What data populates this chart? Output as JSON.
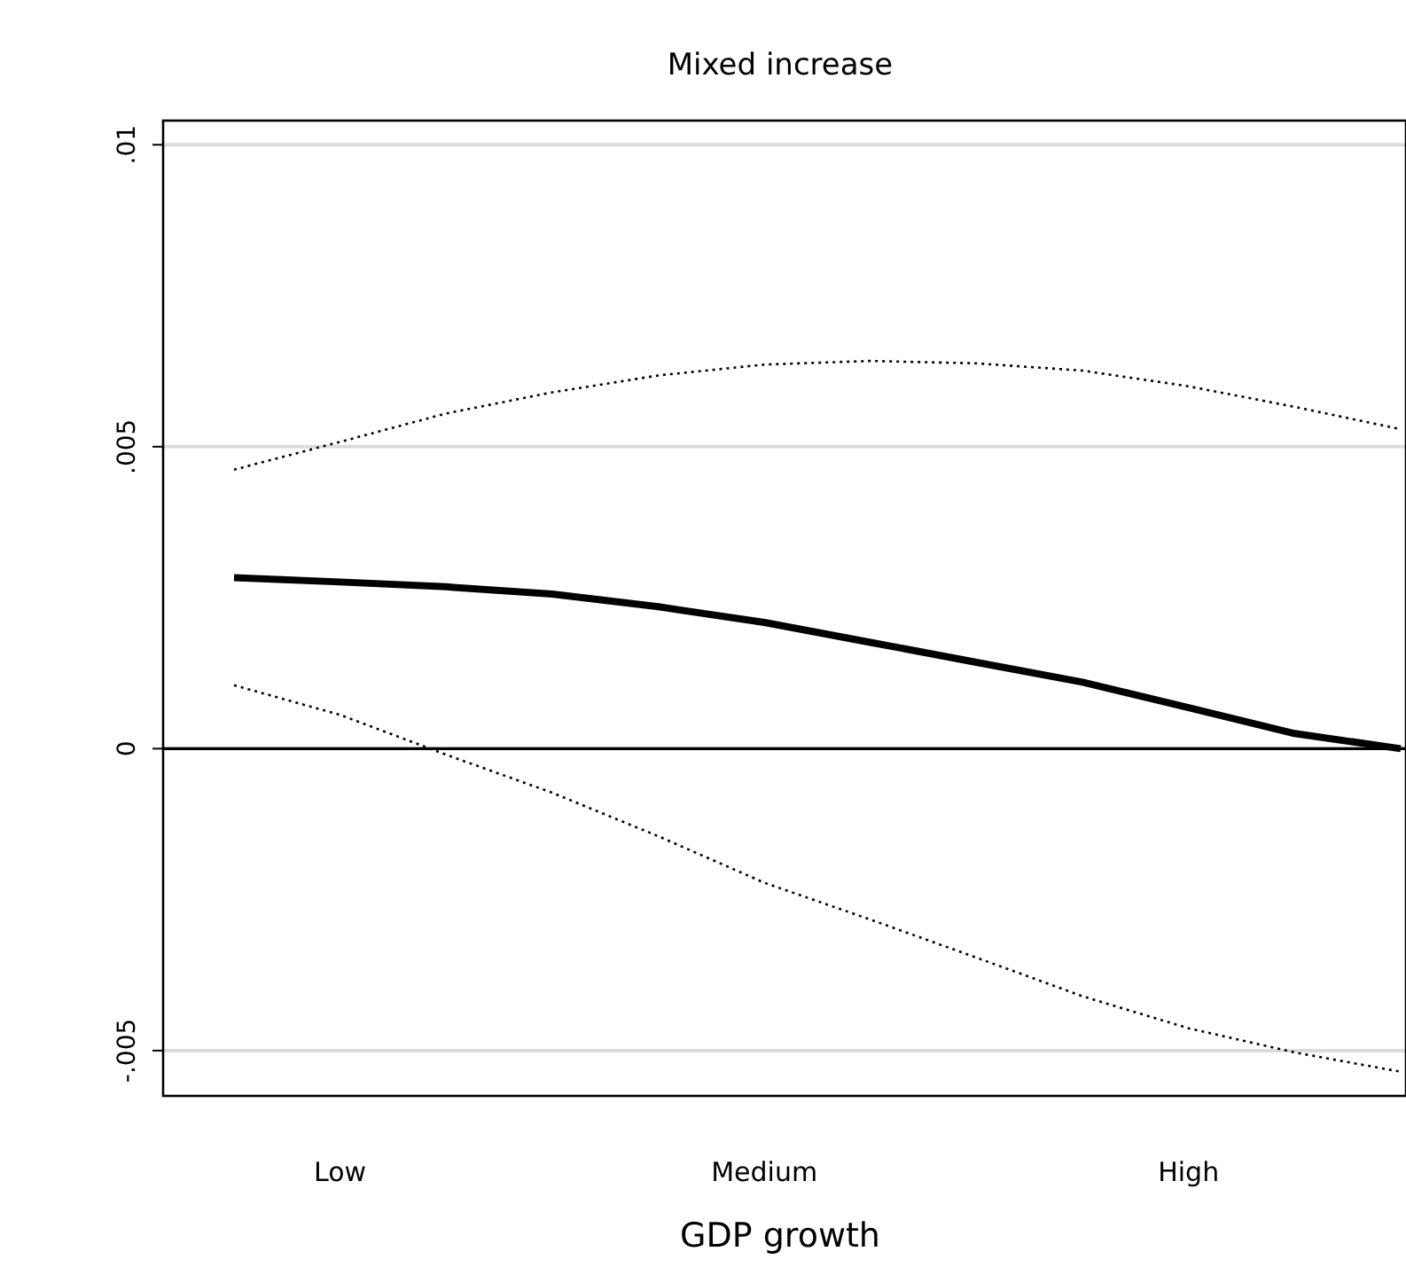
{
  "chart_data": {
    "type": "line",
    "title": "Mixed increase",
    "xlabel": "GDP growth",
    "categories": [
      null,
      "Low",
      null,
      null,
      null,
      "Medium",
      null,
      null,
      null,
      "High",
      null,
      null
    ],
    "ylim": [
      -0.00575,
      0.0104
    ],
    "yticks": [
      {
        "value": -0.005,
        "label": "-.005"
      },
      {
        "value": 0,
        "label": "0"
      },
      {
        "value": 0.005,
        "label": ".005"
      },
      {
        "value": 0.01,
        "label": ".01"
      }
    ],
    "grid": "y",
    "ref_lines": [
      {
        "axis": "y",
        "value": 0,
        "color": "#000000"
      }
    ],
    "series": [
      {
        "color": "#000000",
        "line_style": "solid",
        "values": [
          0.00283,
          0.00276,
          0.00268,
          0.00256,
          0.00235,
          0.00209,
          0.00176,
          0.00143,
          0.0011,
          0.00068,
          0.00025,
          0
        ]
      },
      {
        "color": "#000000",
        "line_style": "dotted",
        "values": [
          0.00462,
          0.00508,
          0.00555,
          0.0059,
          0.00618,
          0.00636,
          0.00642,
          0.00638,
          0.00626,
          0.006,
          0.00566,
          0.00529
        ]
      },
      {
        "color": "#000000",
        "line_style": "dotted",
        "values": [
          0.00105,
          0.00056,
          -0.0001,
          -0.00073,
          -0.00145,
          -0.00222,
          -0.00283,
          -0.00346,
          -0.0041,
          -0.00463,
          -0.00503,
          -0.00535
        ]
      }
    ]
  }
}
